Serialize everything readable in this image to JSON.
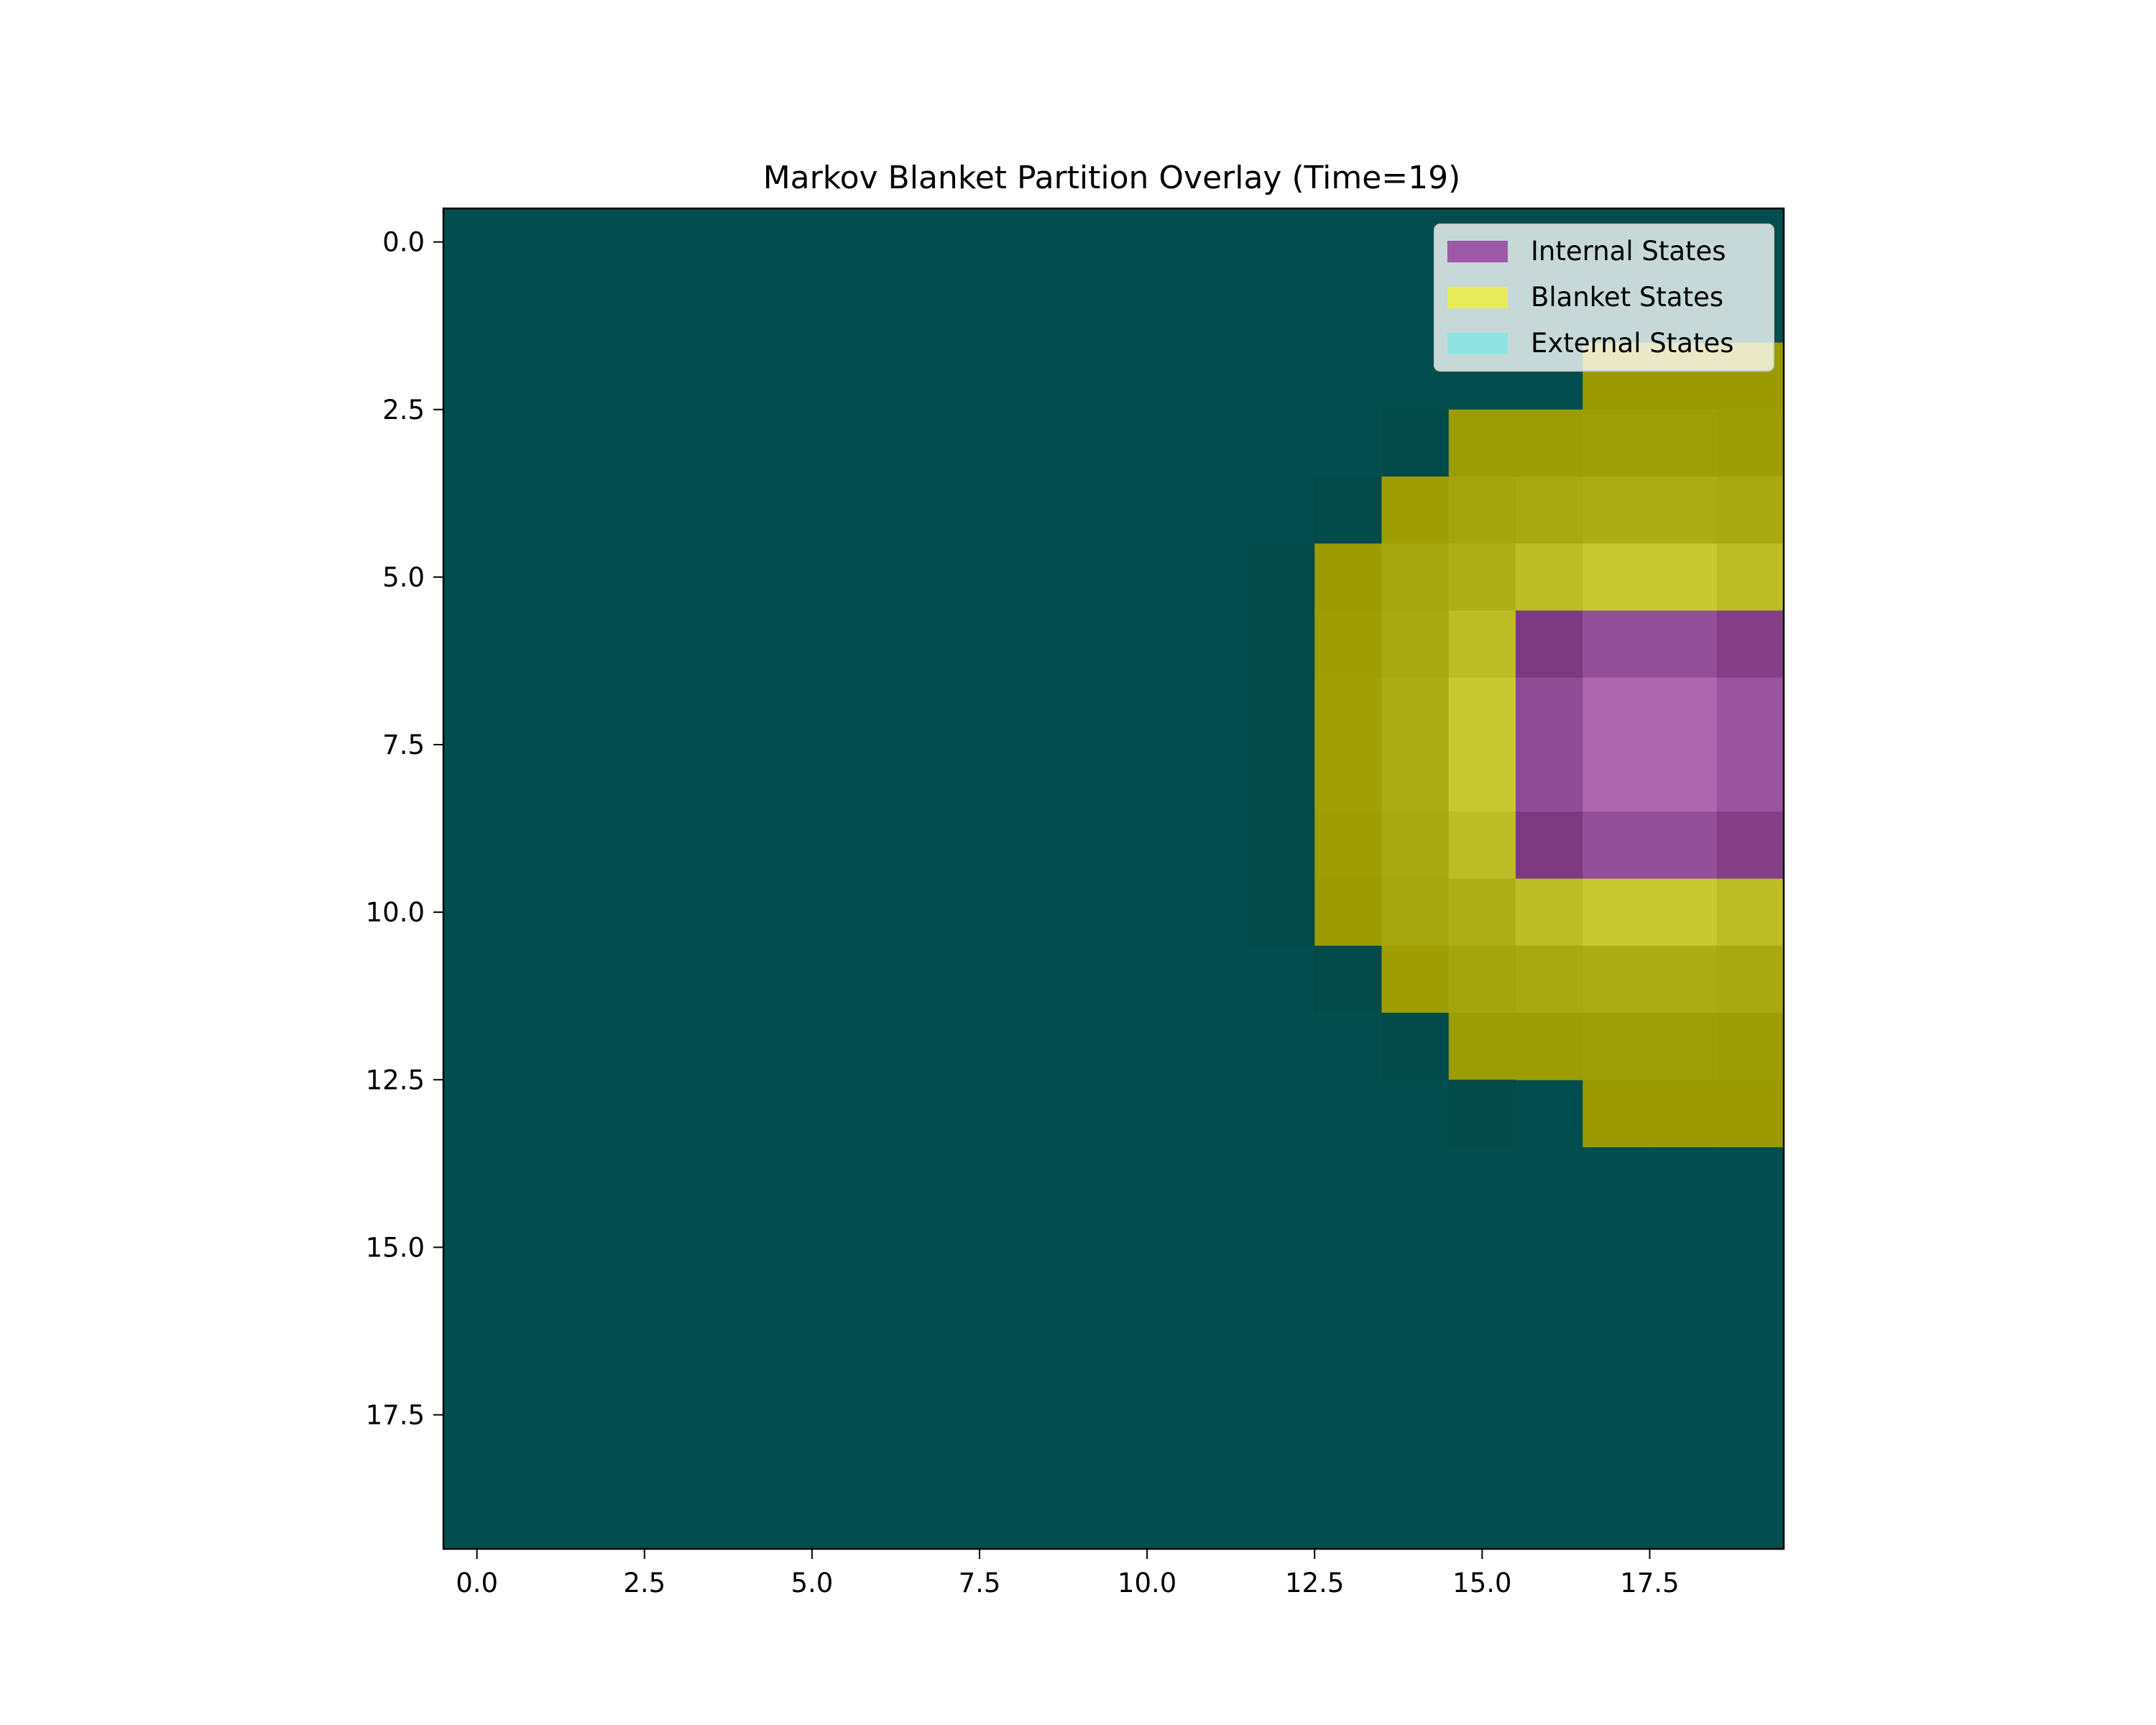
{
  "chart_data": {
    "type": "heatmap",
    "title": "Markov Blanket Partition Overlay (Time=19)",
    "xlabel": "",
    "ylabel": "",
    "grid_size": 20,
    "xlim": [
      -0.5,
      19.5
    ],
    "ylim": [
      19.5,
      -0.5
    ],
    "y_axis_inverted": true,
    "grid": false,
    "x_ticks": [
      0.0,
      2.5,
      5.0,
      7.5,
      10.0,
      12.5,
      15.0,
      17.5
    ],
    "y_ticks": [
      0.0,
      2.5,
      5.0,
      7.5,
      10.0,
      12.5,
      15.0,
      17.5
    ],
    "x_tick_labels": [
      "0.0",
      "2.5",
      "5.0",
      "7.5",
      "10.0",
      "12.5",
      "15.0",
      "17.5"
    ],
    "y_tick_labels": [
      "0.0",
      "2.5",
      "5.0",
      "7.5",
      "10.0",
      "12.5",
      "15.0",
      "17.5"
    ],
    "background_color": "#024d4e",
    "legend": {
      "placement": "top-right",
      "entries": [
        {
          "label": "Internal States",
          "color": "#9b59a6"
        },
        {
          "label": "Blanket States",
          "color": "#e9ec5a"
        },
        {
          "label": "External States",
          "color": "#8fe3e3"
        }
      ]
    },
    "cells": [
      {
        "row": 2,
        "col": 17,
        "state": "blanket",
        "color": "#9a9a00"
      },
      {
        "row": 2,
        "col": 18,
        "state": "blanket",
        "color": "#9a9a00"
      },
      {
        "row": 2,
        "col": 19,
        "state": "blanket",
        "color": "#9a9a00"
      },
      {
        "row": 3,
        "col": 14,
        "state": "external",
        "color": "#034a4a"
      },
      {
        "row": 3,
        "col": 15,
        "state": "blanket",
        "color": "#9c9c04"
      },
      {
        "row": 3,
        "col": 16,
        "state": "blanket",
        "color": "#9c9c04"
      },
      {
        "row": 3,
        "col": 17,
        "state": "blanket",
        "color": "#9e9e06"
      },
      {
        "row": 3,
        "col": 18,
        "state": "blanket",
        "color": "#9e9e06"
      },
      {
        "row": 3,
        "col": 19,
        "state": "blanket",
        "color": "#9c9c04"
      },
      {
        "row": 4,
        "col": 13,
        "state": "external",
        "color": "#034a4a"
      },
      {
        "row": 4,
        "col": 14,
        "state": "blanket",
        "color": "#9e9e04"
      },
      {
        "row": 4,
        "col": 15,
        "state": "blanket",
        "color": "#a4a40c"
      },
      {
        "row": 4,
        "col": 16,
        "state": "blanket",
        "color": "#a8a812"
      },
      {
        "row": 4,
        "col": 17,
        "state": "blanket",
        "color": "#acac16"
      },
      {
        "row": 4,
        "col": 18,
        "state": "blanket",
        "color": "#acac16"
      },
      {
        "row": 4,
        "col": 19,
        "state": "blanket",
        "color": "#a8a812"
      },
      {
        "row": 5,
        "col": 12,
        "state": "external",
        "color": "#034b4b"
      },
      {
        "row": 5,
        "col": 13,
        "state": "blanket",
        "color": "#9c9c02"
      },
      {
        "row": 5,
        "col": 14,
        "state": "blanket",
        "color": "#a6a60e"
      },
      {
        "row": 5,
        "col": 15,
        "state": "blanket",
        "color": "#aeae18"
      },
      {
        "row": 5,
        "col": 16,
        "state": "blanket",
        "color": "#bcbc24"
      },
      {
        "row": 5,
        "col": 17,
        "state": "blanket",
        "color": "#c8c830"
      },
      {
        "row": 5,
        "col": 18,
        "state": "blanket",
        "color": "#c8c830"
      },
      {
        "row": 5,
        "col": 19,
        "state": "blanket",
        "color": "#bcbc24"
      },
      {
        "row": 6,
        "col": 12,
        "state": "external",
        "color": "#034b4b"
      },
      {
        "row": 6,
        "col": 13,
        "state": "blanket",
        "color": "#9e9e04"
      },
      {
        "row": 6,
        "col": 14,
        "state": "blanket",
        "color": "#a8a810"
      },
      {
        "row": 6,
        "col": 15,
        "state": "blanket",
        "color": "#bcbc24"
      },
      {
        "row": 6,
        "col": 16,
        "state": "internal",
        "color": "#7e3a80"
      },
      {
        "row": 6,
        "col": 17,
        "state": "internal",
        "color": "#944f99"
      },
      {
        "row": 6,
        "col": 18,
        "state": "internal",
        "color": "#944f99"
      },
      {
        "row": 6,
        "col": 19,
        "state": "internal",
        "color": "#843f87"
      },
      {
        "row": 7,
        "col": 12,
        "state": "external",
        "color": "#034b4b"
      },
      {
        "row": 7,
        "col": 13,
        "state": "blanket",
        "color": "#a0a006"
      },
      {
        "row": 7,
        "col": 14,
        "state": "blanket",
        "color": "#acac14"
      },
      {
        "row": 7,
        "col": 15,
        "state": "blanket",
        "color": "#c8c830"
      },
      {
        "row": 7,
        "col": 16,
        "state": "internal",
        "color": "#8f4b94"
      },
      {
        "row": 7,
        "col": 17,
        "state": "internal",
        "color": "#ae66ae"
      },
      {
        "row": 7,
        "col": 18,
        "state": "internal",
        "color": "#ae66ae"
      },
      {
        "row": 7,
        "col": 19,
        "state": "internal",
        "color": "#9a539e"
      },
      {
        "row": 8,
        "col": 12,
        "state": "external",
        "color": "#034b4b"
      },
      {
        "row": 8,
        "col": 13,
        "state": "blanket",
        "color": "#a0a006"
      },
      {
        "row": 8,
        "col": 14,
        "state": "blanket",
        "color": "#acac14"
      },
      {
        "row": 8,
        "col": 15,
        "state": "blanket",
        "color": "#c8c830"
      },
      {
        "row": 8,
        "col": 16,
        "state": "internal",
        "color": "#8f4b94"
      },
      {
        "row": 8,
        "col": 17,
        "state": "internal",
        "color": "#ae66ae"
      },
      {
        "row": 8,
        "col": 18,
        "state": "internal",
        "color": "#ae66ae"
      },
      {
        "row": 8,
        "col": 19,
        "state": "internal",
        "color": "#9a539e"
      },
      {
        "row": 9,
        "col": 12,
        "state": "external",
        "color": "#034b4b"
      },
      {
        "row": 9,
        "col": 13,
        "state": "blanket",
        "color": "#9e9e04"
      },
      {
        "row": 9,
        "col": 14,
        "state": "blanket",
        "color": "#a8a810"
      },
      {
        "row": 9,
        "col": 15,
        "state": "blanket",
        "color": "#bcbc24"
      },
      {
        "row": 9,
        "col": 16,
        "state": "internal",
        "color": "#7e3a80"
      },
      {
        "row": 9,
        "col": 17,
        "state": "internal",
        "color": "#944f99"
      },
      {
        "row": 9,
        "col": 18,
        "state": "internal",
        "color": "#944f99"
      },
      {
        "row": 9,
        "col": 19,
        "state": "internal",
        "color": "#843f87"
      },
      {
        "row": 10,
        "col": 12,
        "state": "external",
        "color": "#034b4b"
      },
      {
        "row": 10,
        "col": 13,
        "state": "blanket",
        "color": "#9c9c02"
      },
      {
        "row": 10,
        "col": 14,
        "state": "blanket",
        "color": "#a6a60e"
      },
      {
        "row": 10,
        "col": 15,
        "state": "blanket",
        "color": "#aeae18"
      },
      {
        "row": 10,
        "col": 16,
        "state": "blanket",
        "color": "#bcbc24"
      },
      {
        "row": 10,
        "col": 17,
        "state": "blanket",
        "color": "#c8c830"
      },
      {
        "row": 10,
        "col": 18,
        "state": "blanket",
        "color": "#c8c830"
      },
      {
        "row": 10,
        "col": 19,
        "state": "blanket",
        "color": "#bcbc24"
      },
      {
        "row": 11,
        "col": 13,
        "state": "external",
        "color": "#034a4a"
      },
      {
        "row": 11,
        "col": 14,
        "state": "blanket",
        "color": "#9e9e04"
      },
      {
        "row": 11,
        "col": 15,
        "state": "blanket",
        "color": "#a4a40c"
      },
      {
        "row": 11,
        "col": 16,
        "state": "blanket",
        "color": "#a8a812"
      },
      {
        "row": 11,
        "col": 17,
        "state": "blanket",
        "color": "#acac16"
      },
      {
        "row": 11,
        "col": 18,
        "state": "blanket",
        "color": "#acac16"
      },
      {
        "row": 11,
        "col": 19,
        "state": "blanket",
        "color": "#a8a812"
      },
      {
        "row": 12,
        "col": 14,
        "state": "external",
        "color": "#034a4a"
      },
      {
        "row": 12,
        "col": 15,
        "state": "blanket",
        "color": "#9c9c04"
      },
      {
        "row": 12,
        "col": 16,
        "state": "blanket",
        "color": "#9c9c04"
      },
      {
        "row": 12,
        "col": 17,
        "state": "blanket",
        "color": "#9e9e06"
      },
      {
        "row": 12,
        "col": 18,
        "state": "blanket",
        "color": "#9e9e06"
      },
      {
        "row": 12,
        "col": 19,
        "state": "blanket",
        "color": "#9c9c04"
      },
      {
        "row": 13,
        "col": 15,
        "state": "external",
        "color": "#034a4a"
      },
      {
        "row": 13,
        "col": 17,
        "state": "blanket",
        "color": "#9a9a00"
      },
      {
        "row": 13,
        "col": 18,
        "state": "blanket",
        "color": "#9a9a00"
      },
      {
        "row": 13,
        "col": 19,
        "state": "blanket",
        "color": "#9a9a00"
      }
    ]
  }
}
